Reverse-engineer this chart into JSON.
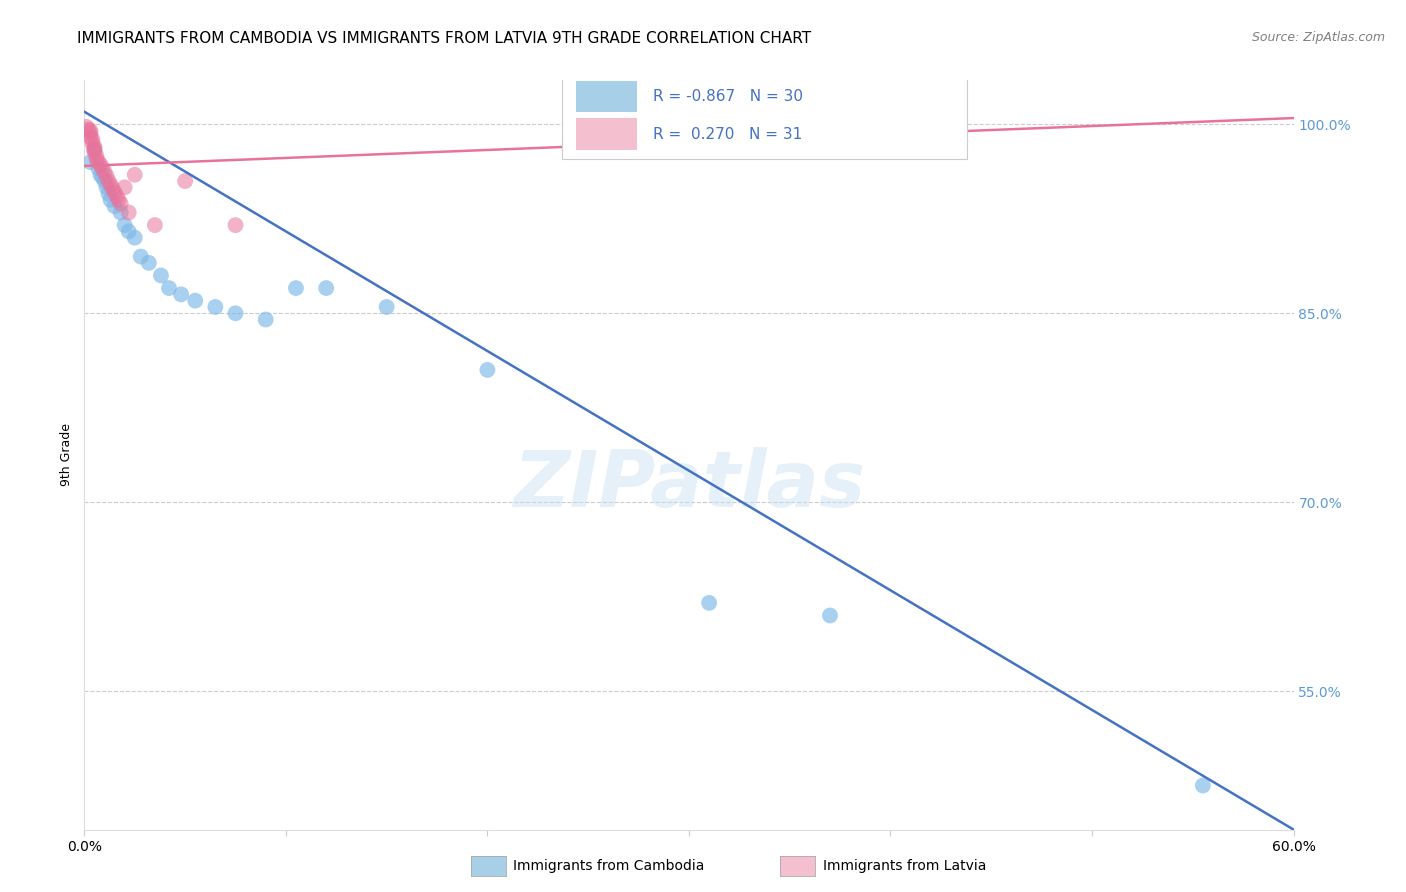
{
  "title": "IMMIGRANTS FROM CAMBODIA VS IMMIGRANTS FROM LATVIA 9TH GRADE CORRELATION CHART",
  "source": "Source: ZipAtlas.com",
  "ylabel": "9th Grade",
  "watermark": "ZIPatlas",
  "xlim": [
    0.0,
    0.6
  ],
  "ylim": [
    0.44,
    1.035
  ],
  "xticks": [
    0.0,
    0.1,
    0.2,
    0.3,
    0.4,
    0.5,
    0.6
  ],
  "yticks_right": [
    0.55,
    0.7,
    0.85,
    1.0
  ],
  "right_ytick_labels": [
    "55.0%",
    "70.0%",
    "85.0%",
    "100.0%"
  ],
  "cambodia_x": [
    0.003,
    0.005,
    0.007,
    0.008,
    0.009,
    0.01,
    0.011,
    0.012,
    0.013,
    0.015,
    0.018,
    0.02,
    0.022,
    0.025,
    0.028,
    0.032,
    0.038,
    0.042,
    0.048,
    0.055,
    0.065,
    0.075,
    0.09,
    0.105,
    0.12,
    0.15,
    0.2,
    0.31,
    0.37,
    0.555
  ],
  "cambodia_y": [
    0.97,
    0.98,
    0.965,
    0.96,
    0.958,
    0.955,
    0.95,
    0.945,
    0.94,
    0.935,
    0.93,
    0.92,
    0.915,
    0.91,
    0.895,
    0.89,
    0.88,
    0.87,
    0.865,
    0.86,
    0.855,
    0.85,
    0.845,
    0.87,
    0.87,
    0.855,
    0.805,
    0.62,
    0.61,
    0.475
  ],
  "latvia_x": [
    0.001,
    0.002,
    0.003,
    0.003,
    0.003,
    0.004,
    0.004,
    0.005,
    0.005,
    0.005,
    0.006,
    0.006,
    0.007,
    0.008,
    0.009,
    0.01,
    0.011,
    0.012,
    0.013,
    0.014,
    0.015,
    0.016,
    0.017,
    0.018,
    0.02,
    0.022,
    0.025,
    0.035,
    0.05,
    0.075,
    0.27
  ],
  "latvia_y": [
    0.998,
    0.996,
    0.995,
    0.993,
    0.99,
    0.988,
    0.985,
    0.982,
    0.98,
    0.978,
    0.975,
    0.972,
    0.97,
    0.968,
    0.965,
    0.962,
    0.959,
    0.955,
    0.952,
    0.949,
    0.946,
    0.943,
    0.94,
    0.937,
    0.95,
    0.93,
    0.96,
    0.92,
    0.955,
    0.92,
    0.985
  ],
  "blue_line_x": [
    0.0,
    0.6
  ],
  "blue_line_y": [
    1.01,
    0.44
  ],
  "pink_line_x": [
    0.0,
    0.6
  ],
  "pink_line_y": [
    0.967,
    1.005
  ],
  "blue_dot_color": "#7db8e8",
  "pink_dot_color": "#e8739a",
  "blue_legend_color": "#a8cfe8",
  "pink_legend_color": "#f4bfcf",
  "blue_line_color": "#4472c4",
  "pink_line_color": "#e8739a",
  "grid_color": "#cccccc",
  "right_axis_color": "#5b9bd5",
  "title_fontsize": 11,
  "source_fontsize": 9
}
